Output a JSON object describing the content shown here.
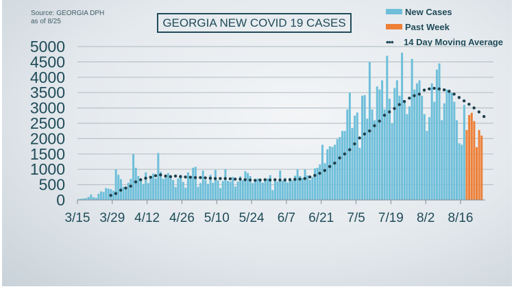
{
  "source_line1": "Source: GEORGIA DPH",
  "source_line2": "as of 8/25",
  "colors": {
    "new_cases": "#6fbfda",
    "past_week": "#ee7f36",
    "average": "#1d3f4a",
    "grid": "#b8c2c8",
    "text": "#1f4b58"
  },
  "chart_data": {
    "type": "bar",
    "title": "GEORGIA NEW COVID 19 CASES",
    "legend": [
      "New Cases",
      "Past Week",
      "14 Day Moving Average"
    ],
    "legend_position": "top-right",
    "xlabel": "",
    "ylabel": "",
    "ylim": [
      0,
      5000
    ],
    "yticks": [
      0,
      500,
      1000,
      1500,
      2000,
      2500,
      3000,
      3500,
      4000,
      4500,
      5000
    ],
    "xticks": [
      "3/15",
      "3/29",
      "4/12",
      "4/26",
      "5/10",
      "5/24",
      "6/7",
      "6/21",
      "7/5",
      "7/19",
      "8/2",
      "8/16"
    ],
    "grid": true,
    "start_date": "3/15",
    "end_date": "8/24",
    "past_week_days": 7,
    "new_cases": [
      30,
      40,
      50,
      60,
      100,
      180,
      90,
      70,
      200,
      280,
      260,
      390,
      370,
      350,
      300,
      1000,
      820,
      680,
      430,
      380,
      560,
      690,
      1500,
      1050,
      780,
      670,
      520,
      900,
      550,
      780,
      860,
      700,
      1530,
      920,
      690,
      730,
      880,
      720,
      650,
      420,
      700,
      820,
      590,
      400,
      900,
      760,
      1050,
      1080,
      430,
      550,
      960,
      650,
      520,
      820,
      560,
      980,
      640,
      390,
      620,
      1000,
      620,
      600,
      750,
      440,
      600,
      770,
      650,
      940,
      880,
      780,
      550,
      610,
      700,
      640,
      560,
      650,
      700,
      810,
      320,
      690,
      600,
      960,
      630,
      720,
      570,
      720,
      640,
      790,
      1000,
      780,
      720,
      1000,
      800,
      660,
      750,
      1030,
      1050,
      1160,
      1800,
      1200,
      1650,
      1750,
      1730,
      1800,
      1980,
      2050,
      2250,
      2250,
      2950,
      3500,
      2350,
      2750,
      2850,
      1700,
      3400,
      3420,
      2650,
      4500,
      2950,
      2600,
      3700,
      3600,
      3900,
      2950,
      4700,
      3300,
      2500,
      3650,
      3900,
      3400,
      4800,
      3250,
      2800,
      3050,
      4600,
      3600,
      3800,
      3900,
      3400,
      2800,
      2250,
      2700,
      3800,
      3200,
      4250,
      4450,
      2600,
      3150,
      3600,
      3600,
      3500,
      3200,
      2600,
      1850,
      1800,
      3100,
      2280,
      2770,
      2840,
      2570,
      1720,
      2280,
      2100
    ],
    "moving_average": {
      "start_date": "3/28",
      "step_days": 2,
      "values": [
        150,
        210,
        320,
        390,
        450,
        590,
        660,
        710,
        740,
        790,
        820,
        780,
        760,
        780,
        760,
        750,
        740,
        730,
        730,
        720,
        710,
        700,
        700,
        700,
        690,
        680,
        680,
        660,
        650,
        640,
        650,
        660,
        650,
        660,
        650,
        650,
        660,
        670,
        680,
        700,
        750,
        800,
        870,
        960,
        1090,
        1200,
        1370,
        1500,
        1640,
        1830,
        2020,
        2150,
        2250,
        2420,
        2570,
        2760,
        2870,
        2980,
        3110,
        3210,
        3320,
        3400,
        3450,
        3580,
        3620,
        3640,
        3620,
        3590,
        3540,
        3450,
        3340,
        3230,
        3120,
        3000,
        2870,
        2720
      ]
    }
  }
}
